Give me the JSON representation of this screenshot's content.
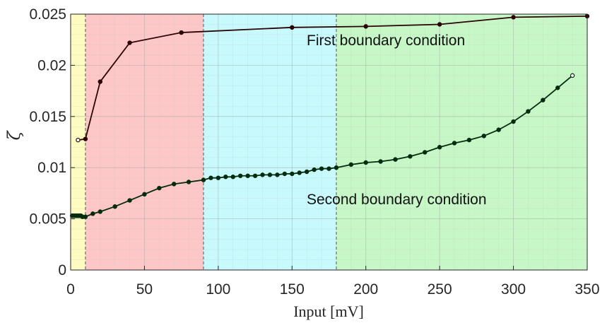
{
  "chart_data": {
    "type": "line",
    "xlabel": "Input [mV]",
    "ylabel": "ζ",
    "xlim": [
      0,
      350
    ],
    "ylim": [
      0,
      0.025
    ],
    "x_ticks": [
      0,
      50,
      100,
      150,
      200,
      250,
      300,
      350
    ],
    "y_ticks": [
      0,
      0.005,
      0.01,
      0.015,
      0.02,
      0.025
    ],
    "x_tick_labels": [
      "0",
      "50",
      "100",
      "150",
      "200",
      "250",
      "300",
      "350"
    ],
    "y_tick_labels": [
      "0",
      "0.005",
      "0.01",
      "0.015",
      "0.02",
      "0.025"
    ],
    "grid": true,
    "regions": [
      {
        "from": 0,
        "to": 10,
        "color": "#fdfbc0"
      },
      {
        "from": 10,
        "to": 90,
        "color": "#fdc7c7"
      },
      {
        "from": 90,
        "to": 180,
        "color": "#c7f9fd"
      },
      {
        "from": 180,
        "to": 350,
        "color": "#c7f7c7"
      }
    ],
    "boundaries": [
      10,
      90,
      180
    ],
    "series": [
      {
        "name": "First boundary condition",
        "color": "#2b0303",
        "points": [
          [
            5,
            0.0127
          ],
          [
            10,
            0.0128
          ],
          [
            20,
            0.0184
          ],
          [
            40,
            0.0222
          ],
          [
            75,
            0.0232
          ],
          [
            150,
            0.0237
          ],
          [
            200,
            0.0238
          ],
          [
            250,
            0.024
          ],
          [
            300,
            0.0247
          ],
          [
            350,
            0.0248
          ]
        ]
      },
      {
        "name": "Second boundary condition",
        "color": "#032b0e",
        "points": [
          [
            1,
            0.0053
          ],
          [
            2,
            0.0053
          ],
          [
            3,
            0.0053
          ],
          [
            4,
            0.0053
          ],
          [
            5,
            0.0053
          ],
          [
            6,
            0.0053
          ],
          [
            7,
            0.0053
          ],
          [
            8,
            0.0052
          ],
          [
            10,
            0.0052
          ],
          [
            15,
            0.0055
          ],
          [
            20,
            0.0057
          ],
          [
            30,
            0.0062
          ],
          [
            40,
            0.0068
          ],
          [
            50,
            0.0074
          ],
          [
            60,
            0.008
          ],
          [
            70,
            0.0084
          ],
          [
            80,
            0.0086
          ],
          [
            90,
            0.0088
          ],
          [
            95,
            0.009
          ],
          [
            100,
            0.009
          ],
          [
            105,
            0.0091
          ],
          [
            110,
            0.0091
          ],
          [
            115,
            0.0092
          ],
          [
            120,
            0.0092
          ],
          [
            125,
            0.0092
          ],
          [
            130,
            0.0093
          ],
          [
            135,
            0.0093
          ],
          [
            140,
            0.0093
          ],
          [
            145,
            0.0094
          ],
          [
            150,
            0.0094
          ],
          [
            155,
            0.0095
          ],
          [
            160,
            0.0096
          ],
          [
            165,
            0.0098
          ],
          [
            170,
            0.0099
          ],
          [
            175,
            0.0099
          ],
          [
            180,
            0.01
          ],
          [
            190,
            0.0103
          ],
          [
            200,
            0.0105
          ],
          [
            210,
            0.0106
          ],
          [
            220,
            0.0108
          ],
          [
            230,
            0.0111
          ],
          [
            240,
            0.0115
          ],
          [
            250,
            0.012
          ],
          [
            260,
            0.0124
          ],
          [
            270,
            0.0127
          ],
          [
            280,
            0.0131
          ],
          [
            290,
            0.0137
          ],
          [
            300,
            0.0145
          ],
          [
            310,
            0.0155
          ],
          [
            320,
            0.0166
          ],
          [
            330,
            0.0178
          ],
          [
            340,
            0.019
          ]
        ]
      }
    ],
    "annotations": [
      "First boundary condition",
      "Second boundary condition"
    ]
  }
}
